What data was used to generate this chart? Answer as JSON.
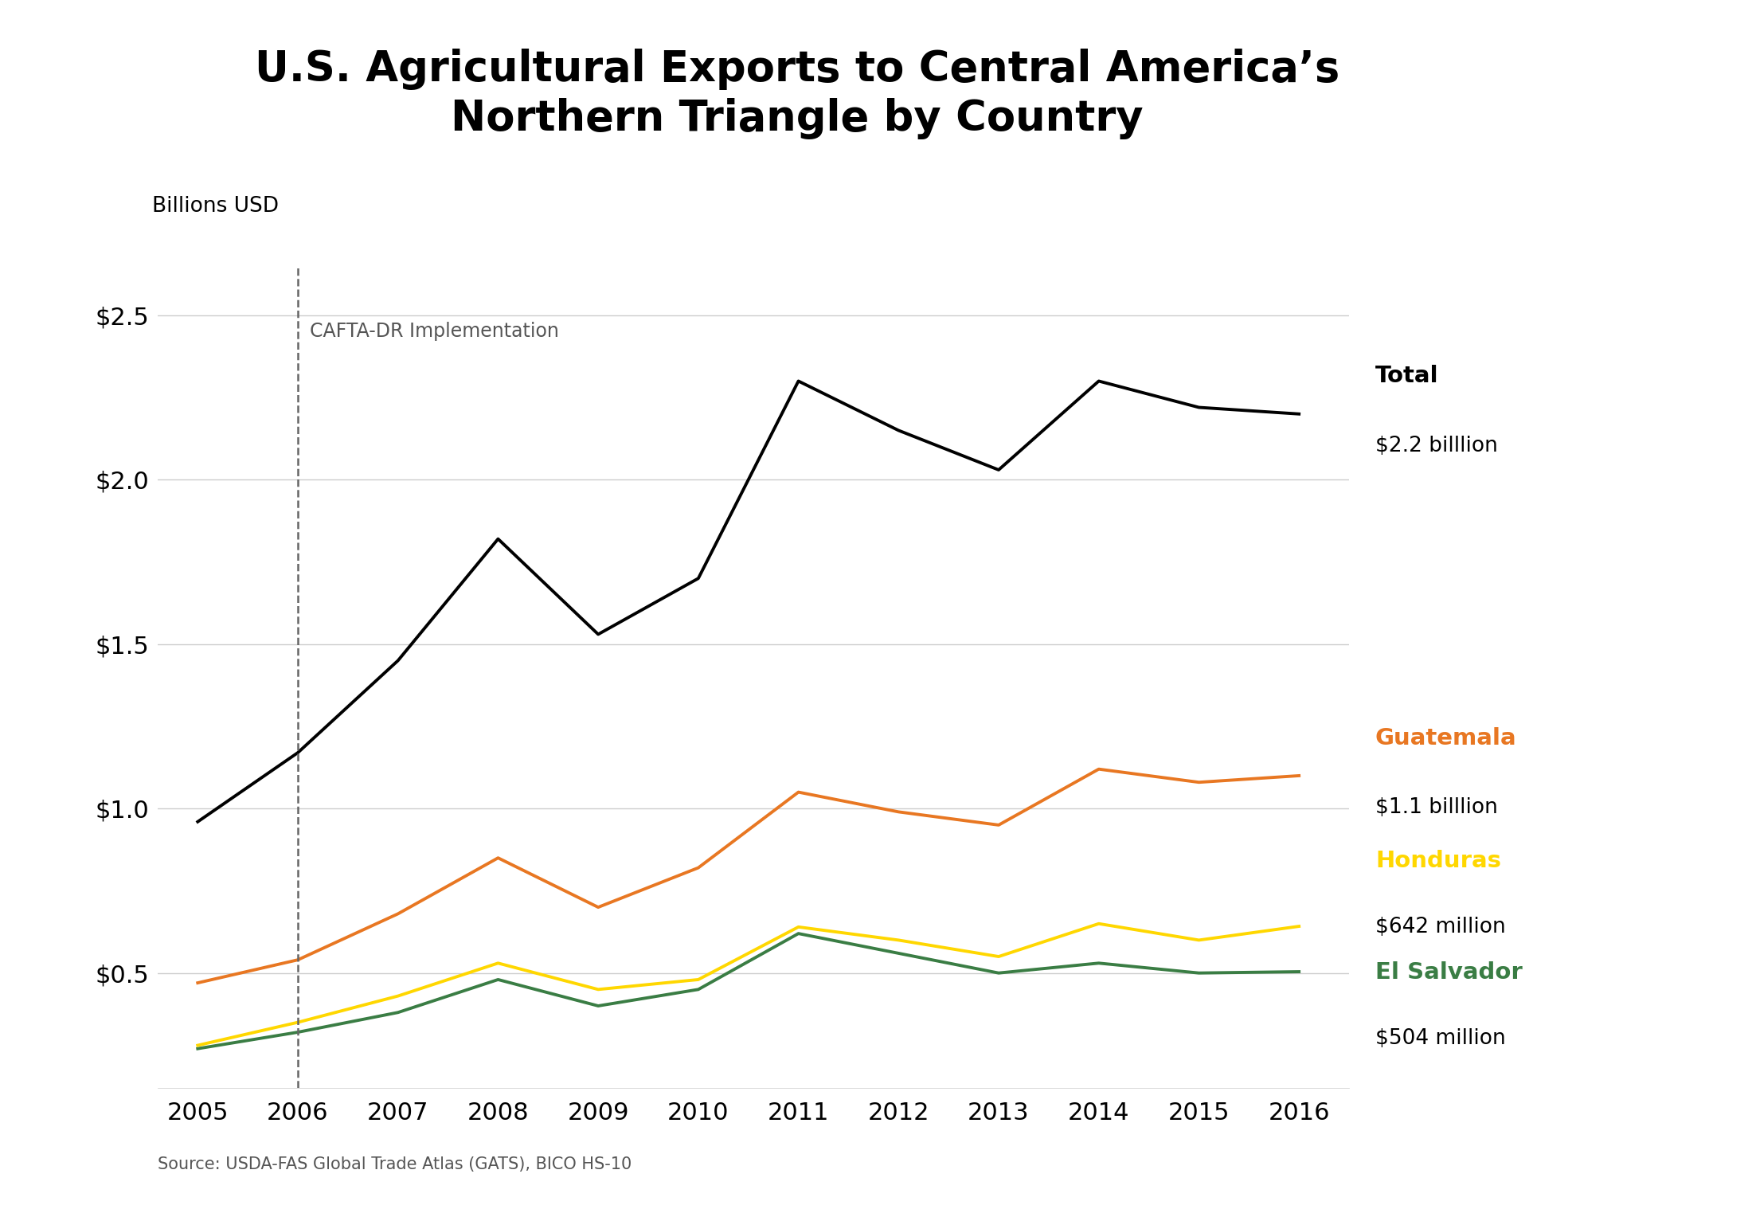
{
  "title_line1": "U.S. Agricultural Exports to Central America’s",
  "title_line2": "Northern Triangle by Country",
  "ylabel": "Billions USD",
  "source": "Source: USDA-FAS Global Trade Atlas (GATS), BICO HS-10",
  "years": [
    2005,
    2006,
    2007,
    2008,
    2009,
    2010,
    2011,
    2012,
    2013,
    2014,
    2015,
    2016
  ],
  "total": [
    0.96,
    1.17,
    1.45,
    1.82,
    1.53,
    1.7,
    2.3,
    2.15,
    2.03,
    2.3,
    2.22,
    2.2
  ],
  "guatemala": [
    0.47,
    0.54,
    0.68,
    0.85,
    0.7,
    0.82,
    1.05,
    0.99,
    0.95,
    1.12,
    1.08,
    1.1
  ],
  "honduras": [
    0.28,
    0.35,
    0.43,
    0.53,
    0.45,
    0.48,
    0.64,
    0.6,
    0.55,
    0.65,
    0.6,
    0.642
  ],
  "el_salvador": [
    0.27,
    0.32,
    0.38,
    0.48,
    0.4,
    0.45,
    0.62,
    0.56,
    0.5,
    0.53,
    0.5,
    0.504
  ],
  "total_color": "#000000",
  "guatemala_color": "#E87722",
  "honduras_color": "#FFD700",
  "el_salvador_color": "#3A7D44",
  "cafta_year": 2006,
  "cafta_label": "CAFTA-DR Implementation",
  "total_label": "Total",
  "total_value_label": "$2.2 billlion",
  "guatemala_label": "Guatemala",
  "guatemala_value_label": "$1.1 billlion",
  "honduras_label": "Honduras",
  "honduras_value_label": "$642 million",
  "el_salvador_label": "El Salvador",
  "el_salvador_value_label": "$504 million",
  "ylim": [
    0.15,
    2.65
  ],
  "yticks": [
    0.5,
    1.0,
    1.5,
    2.0,
    2.5
  ],
  "ytick_labels": [
    "$0.5",
    "$1.0",
    "$1.5",
    "$2.0",
    "$2.5"
  ],
  "background_color": "#ffffff",
  "grid_color": "#cccccc",
  "line_width": 2.8
}
